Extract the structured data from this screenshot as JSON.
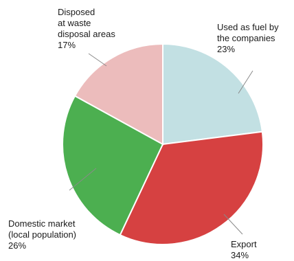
{
  "chart_data": {
    "type": "pie",
    "title": "",
    "slices": [
      {
        "label_lines": [
          "Used as fuel by",
          "the companies"
        ],
        "value": 23,
        "value_text": "23%",
        "color": "#c2e0e3"
      },
      {
        "label_lines": [
          "Export"
        ],
        "value": 34,
        "value_text": "34%",
        "color": "#d64141"
      },
      {
        "label_lines": [
          "Domestic market",
          "(local population)"
        ],
        "value": 26,
        "value_text": "26%",
        "color": "#4caf50"
      },
      {
        "label_lines": [
          "Disposed",
          "at waste",
          "disposal areas"
        ],
        "value": 17,
        "value_text": "17%",
        "color": "#ecbcbc"
      }
    ],
    "legend": "none"
  }
}
